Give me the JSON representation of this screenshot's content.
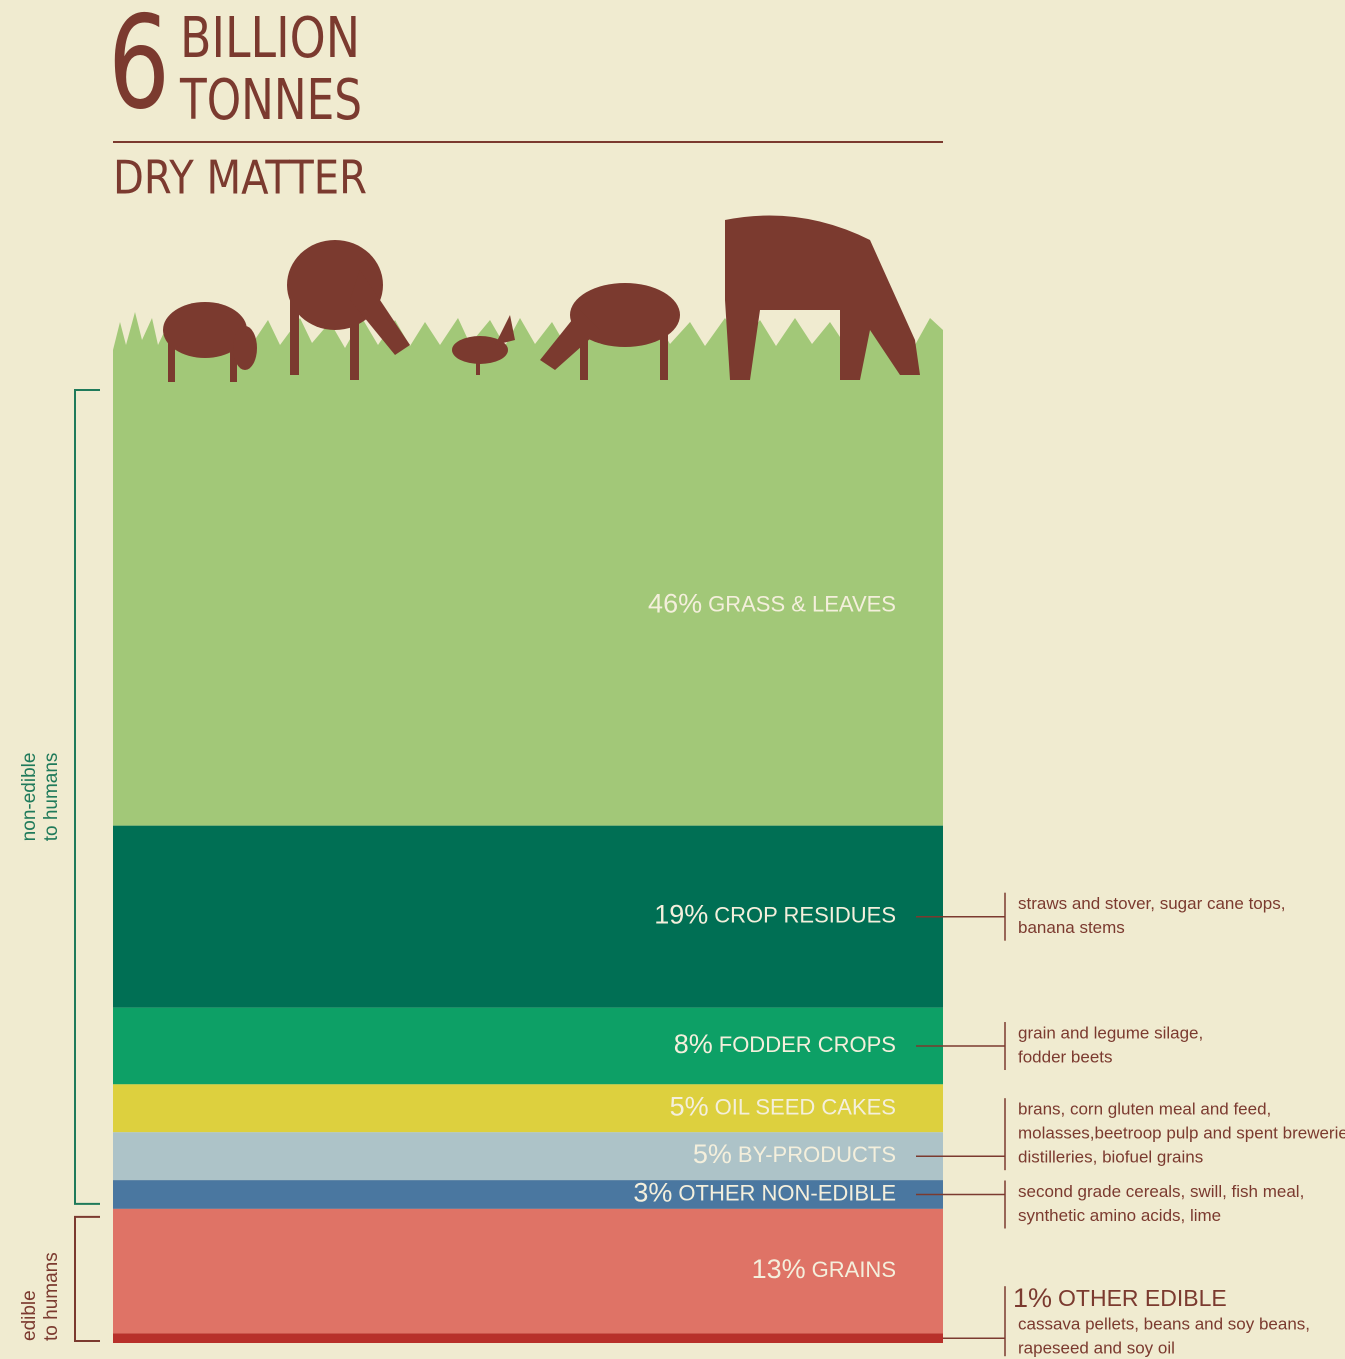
{
  "chart_data": {
    "type": "stacked-column",
    "title_number": "6",
    "title": [
      "BILLION",
      "TONNES"
    ],
    "subtitle": "DRY MATTER",
    "categories": [
      "GRASS & LEAVES",
      "CROP RESIDUES",
      "FODDER CROPS",
      "OIL SEED CAKES",
      "BY-PRODUCTS",
      "OTHER NON-EDIBLE",
      "GRAINS",
      "OTHER EDIBLE"
    ],
    "values": [
      46,
      19,
      8,
      5,
      5,
      3,
      13,
      1
    ],
    "value_labels": [
      "46%",
      "19%",
      "8%",
      "5%",
      "5%",
      "3%",
      "13%",
      "1%"
    ],
    "colors": [
      "#a2c878",
      "#006f54",
      "#0da066",
      "#ddd03e",
      "#adc3c8",
      "#4a77a0",
      "#df7366",
      "#b8302a"
    ],
    "notes": [
      null,
      [
        "straws and stover, sugar cane tops,",
        "banana stems"
      ],
      [
        "grain and legume silage,",
        "fodder beets"
      ],
      null,
      [
        "brans, corn gluten meal and feed,",
        "molasses,beetroop pulp and spent breweries,",
        "distilleries, biofuel grains"
      ],
      [
        "second grade cereals, swill, fish meal,",
        "synthetic amino acids, lime"
      ],
      null,
      [
        "cassava pellets, beans and soy beans,",
        "rapeseed and soy oil"
      ]
    ],
    "groups": [
      [
        "non-edible",
        "to humans"
      ],
      [
        "edible",
        "to humans"
      ]
    ]
  }
}
